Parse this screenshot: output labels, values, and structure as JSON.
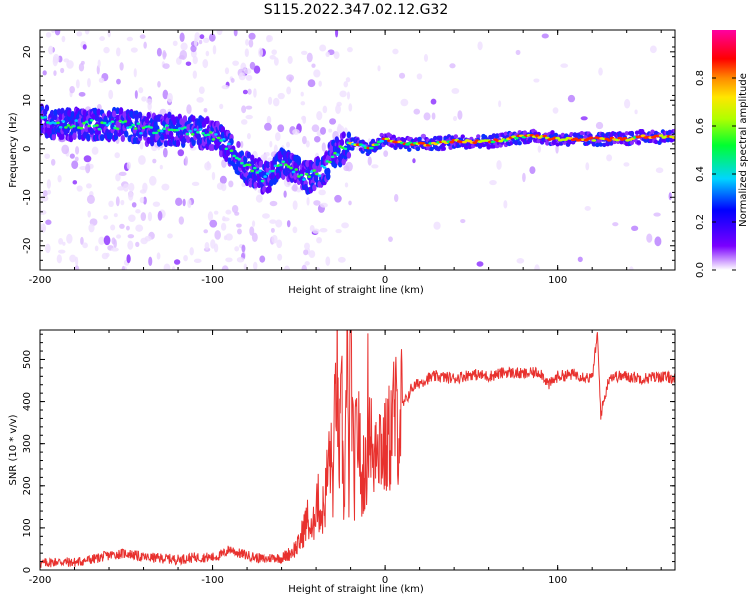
{
  "title": "S115.2022.347.02.12.G32",
  "colors": {
    "trace": "#e8312e",
    "axis": "#000000",
    "background": "#ffffff"
  },
  "chart_data": [
    {
      "type": "heatmap",
      "xlabel": "Height of straight line (km)",
      "ylabel": "Frequency (Hz)",
      "xlim": [
        -200,
        168
      ],
      "ylim": [
        -25,
        24.5
      ],
      "xticks": [
        -200,
        -100,
        0,
        100
      ],
      "xtick_labels": [
        "-200",
        "-100",
        "0",
        "100"
      ],
      "yticks": [
        -20,
        -10,
        0,
        10,
        20
      ],
      "ytick_labels": [
        "-20",
        "-10",
        "0",
        "10",
        "20"
      ],
      "colorbar": {
        "label": "Normalized spectral amplitude",
        "range": [
          0,
          1
        ],
        "ticks": [
          0,
          0.2,
          0.4,
          0.6,
          0.8
        ],
        "tick_labels": [
          "0.0",
          "0.2",
          "0.4",
          "0.6",
          "0.8"
        ],
        "colormap": "hsv-like (white → purple → blue → cyan → green → yellow → red → magenta)"
      },
      "ridge": {
        "description": "peak frequency track",
        "x": [
          -200,
          -190,
          -180,
          -170,
          -160,
          -150,
          -140,
          -130,
          -120,
          -110,
          -100,
          -95,
          -90,
          -85,
          -80,
          -75,
          -70,
          -65,
          -60,
          -55,
          -50,
          -45,
          -40,
          -35,
          -30,
          -25,
          -20,
          -15,
          -10,
          -5,
          0,
          10,
          20,
          30,
          40,
          50,
          60,
          70,
          80,
          90,
          100,
          110,
          120,
          130,
          140,
          150,
          160,
          168
        ],
        "y": [
          6,
          5,
          5,
          5,
          5,
          5,
          4,
          4,
          4,
          3.5,
          3,
          1.5,
          0,
          -2,
          -4,
          -5,
          -6,
          -5,
          -3,
          -4,
          -5,
          -6,
          -5,
          -4,
          -1,
          0,
          1,
          1,
          0,
          1,
          2,
          1,
          1,
          1,
          1.5,
          1.5,
          1.5,
          2,
          2.5,
          2.5,
          2,
          2,
          2,
          2,
          2,
          2.5,
          2.5,
          2.5
        ]
      }
    },
    {
      "type": "line",
      "xlabel": "Height of straight line (km)",
      "ylabel": "SNR (10 * v/v)",
      "xlim": [
        -200,
        168
      ],
      "ylim": [
        0,
        570
      ],
      "xticks": [
        -200,
        -100,
        0,
        100
      ],
      "xtick_labels": [
        "-200",
        "-100",
        "0",
        "100"
      ],
      "yticks": [
        0,
        100,
        200,
        300,
        400,
        500
      ],
      "ytick_labels": [
        "0",
        "100",
        "200",
        "300",
        "400",
        "500"
      ],
      "series": [
        {
          "x": [
            -200,
            -190,
            -180,
            -170,
            -160,
            -150,
            -140,
            -130,
            -120,
            -110,
            -100,
            -95,
            -90,
            -85,
            -80,
            -75,
            -70,
            -65,
            -60,
            -55,
            -50,
            -47,
            -45,
            -42,
            -40,
            -37,
            -35,
            -32,
            -30,
            -28,
            -27,
            -25,
            -24,
            -22,
            -21,
            -20,
            -18,
            -17,
            -15,
            -14,
            -12,
            -11,
            -10,
            -8,
            -7,
            -5,
            -3,
            0,
            3,
            5,
            8,
            10,
            13,
            15,
            20,
            25,
            30,
            40,
            50,
            60,
            70,
            80,
            90,
            95,
            100,
            110,
            120,
            123,
            125,
            130,
            140,
            150,
            160,
            168
          ],
          "y": [
            15,
            20,
            18,
            25,
            35,
            40,
            30,
            28,
            25,
            30,
            30,
            35,
            50,
            40,
            35,
            30,
            25,
            30,
            28,
            40,
            60,
            100,
            120,
            80,
            180,
            130,
            160,
            280,
            200,
            540,
            250,
            370,
            150,
            480,
            200,
            560,
            180,
            300,
            350,
            180,
            260,
            200,
            400,
            320,
            220,
            360,
            310,
            280,
            320,
            370,
            350,
            390,
            410,
            430,
            445,
            455,
            460,
            455,
            465,
            460,
            470,
            465,
            470,
            440,
            460,
            465,
            455,
            560,
            370,
            460,
            460,
            455,
            460,
            455
          ]
        }
      ]
    }
  ]
}
